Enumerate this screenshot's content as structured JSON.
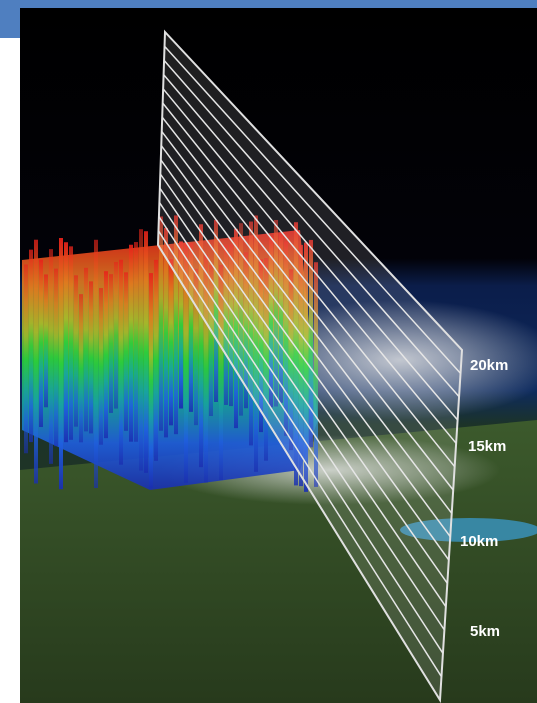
{
  "altitude_labels": [
    "20km",
    "15km",
    "10km",
    "5km"
  ]
}
